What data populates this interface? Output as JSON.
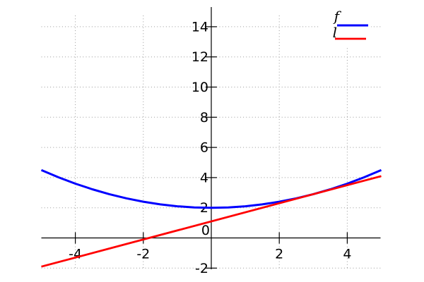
{
  "chart_data": {
    "type": "line",
    "title": "",
    "xlabel": "",
    "ylabel": "",
    "grid": "dotted",
    "axes_style": "through-origin",
    "x_range": [
      -5,
      5
    ],
    "y_range": [
      -2,
      15
    ],
    "x_ticks": [
      {
        "value": -4,
        "label": "-4"
      },
      {
        "value": -2,
        "label": "-2"
      },
      {
        "value": 2,
        "label": "2"
      },
      {
        "value": 4,
        "label": "4"
      }
    ],
    "y_ticks": [
      {
        "value": 14,
        "label": "14"
      },
      {
        "value": 12,
        "label": "12"
      },
      {
        "value": 10,
        "label": "10"
      },
      {
        "value": 8,
        "label": "8"
      },
      {
        "value": 6,
        "label": "6"
      },
      {
        "value": 4,
        "label": "4"
      },
      {
        "value": 2,
        "label": "2"
      },
      {
        "value": 0,
        "label": "0"
      },
      {
        "value": -2,
        "label": "-2"
      }
    ],
    "legend": {
      "position": "top-right",
      "entries": [
        {
          "label": "f",
          "color": "#0000ff"
        },
        {
          "label": "l",
          "color": "#ff0000"
        }
      ]
    },
    "series": [
      {
        "name": "f",
        "color": "#0000ff",
        "stroke_width": 3,
        "points": [
          [
            -5,
            4.5
          ],
          [
            -4.5,
            4.025
          ],
          [
            -4,
            3.6
          ],
          [
            -3.5,
            3.225
          ],
          [
            -3,
            2.9
          ],
          [
            -2.5,
            2.625
          ],
          [
            -2,
            2.4
          ],
          [
            -1.5,
            2.225
          ],
          [
            -1,
            2.1
          ],
          [
            -0.5,
            2.025
          ],
          [
            0,
            2
          ],
          [
            0.5,
            2.025
          ],
          [
            1,
            2.1
          ],
          [
            1.5,
            2.225
          ],
          [
            2,
            2.4
          ],
          [
            2.5,
            2.625
          ],
          [
            3,
            2.9
          ],
          [
            3.5,
            3.225
          ],
          [
            4,
            3.6
          ],
          [
            4.5,
            4.025
          ],
          [
            5,
            4.5
          ]
        ]
      },
      {
        "name": "l",
        "color": "#ff0000",
        "stroke_width": 2.8,
        "points": [
          [
            -5,
            -1.9
          ],
          [
            5,
            4.1
          ]
        ]
      }
    ],
    "colors": {
      "axis": "#000000",
      "grid": "#999999",
      "background": "#ffffff"
    }
  }
}
